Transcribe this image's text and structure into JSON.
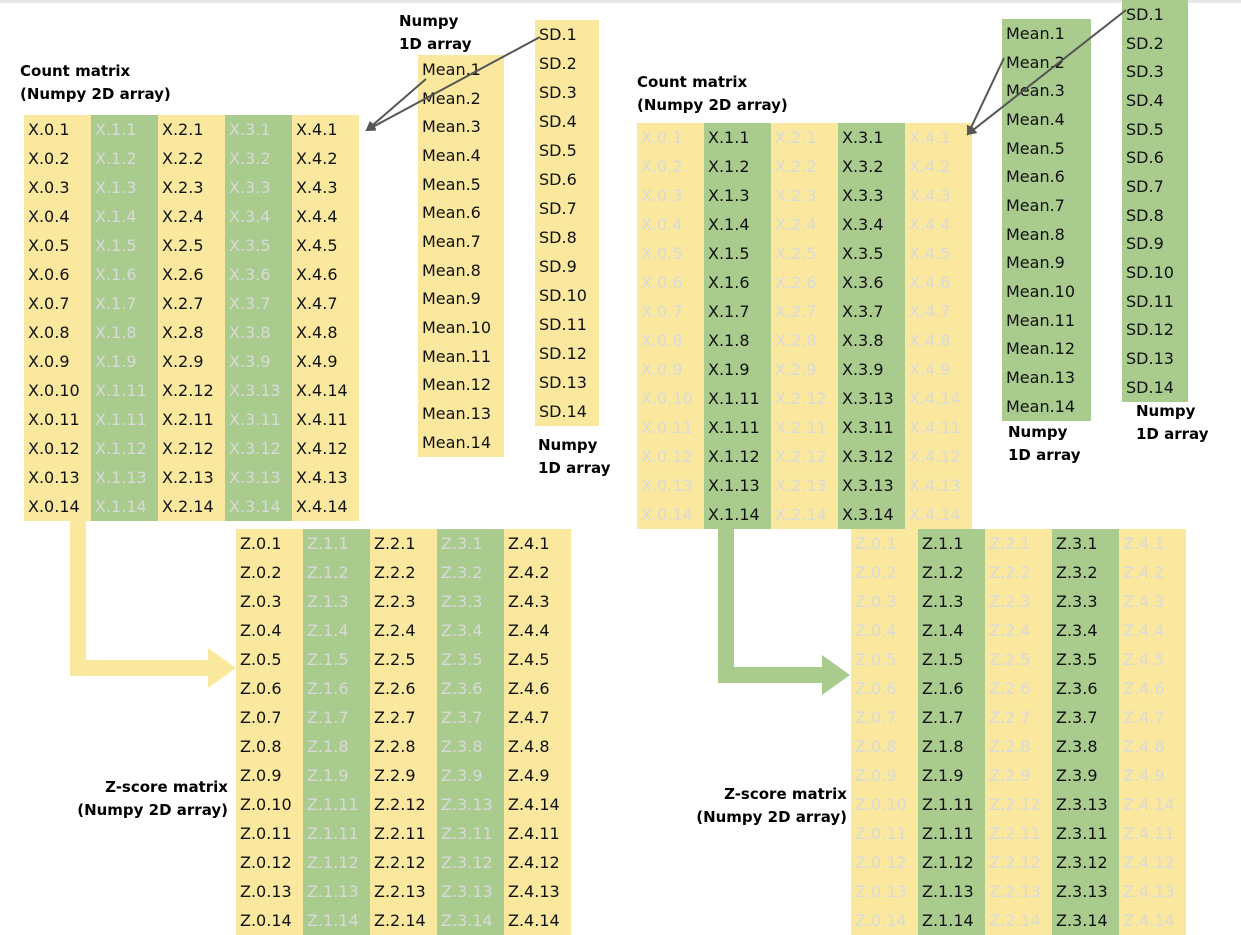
{
  "labels": {
    "count_matrix": "Count matrix\n(Numpy 2D array)",
    "zscore_matrix": "Z-score matrix\n(Numpy 2D array)",
    "numpy_1d": "Numpy\n1D array"
  },
  "colors": {
    "yellow": "#f9e89d",
    "green": "#a9cc8e",
    "text_dark": "#111111",
    "text_faint": "#d9d9d9"
  },
  "means": [
    "Mean.1",
    "Mean.2",
    "Mean.3",
    "Mean.4",
    "Mean.5",
    "Mean.6",
    "Mean.7",
    "Mean.8",
    "Mean.9",
    "Mean.10",
    "Mean.11",
    "Mean.12",
    "Mean.13",
    "Mean.14"
  ],
  "sds": [
    "SD.1",
    "SD.2",
    "SD.3",
    "SD.4",
    "SD.5",
    "SD.6",
    "SD.7",
    "SD.8",
    "SD.9",
    "SD.10",
    "SD.11",
    "SD.12",
    "SD.13",
    "SD.14"
  ],
  "count_matrix": [
    [
      "X.0.1",
      "X.1.1",
      "X.2.1",
      "X.3.1",
      "X.4.1"
    ],
    [
      "X.0.2",
      "X.1.2",
      "X.2.2",
      "X.3.2",
      "X.4.2"
    ],
    [
      "X.0.3",
      "X.1.3",
      "X.2.3",
      "X.3.3",
      "X.4.3"
    ],
    [
      "X.0.4",
      "X.1.4",
      "X.2.4",
      "X.3.4",
      "X.4.4"
    ],
    [
      "X.0.5",
      "X.1.5",
      "X.2.5",
      "X.3.5",
      "X.4.5"
    ],
    [
      "X.0.6",
      "X.1.6",
      "X.2.6",
      "X.3.6",
      "X.4.6"
    ],
    [
      "X.0.7",
      "X.1.7",
      "X.2.7",
      "X.3.7",
      "X.4.7"
    ],
    [
      "X.0.8",
      "X.1.8",
      "X.2.8",
      "X.3.8",
      "X.4.8"
    ],
    [
      "X.0.9",
      "X.1.9",
      "X.2.9",
      "X.3.9",
      "X.4.9"
    ],
    [
      "X.0.10",
      "X.1.11",
      "X.2.12",
      "X.3.13",
      "X.4.14"
    ],
    [
      "X.0.11",
      "X.1.11",
      "X.2.11",
      "X.3.11",
      "X.4.11"
    ],
    [
      "X.0.12",
      "X.1.12",
      "X.2.12",
      "X.3.12",
      "X.4.12"
    ],
    [
      "X.0.13",
      "X.1.13",
      "X.2.13",
      "X.3.13",
      "X.4.13"
    ],
    [
      "X.0.14",
      "X.1.14",
      "X.2.14",
      "X.3.14",
      "X.4.14"
    ]
  ],
  "zscore_matrix": [
    [
      "Z.0.1",
      "Z.1.1",
      "Z.2.1",
      "Z.3.1",
      "Z.4.1"
    ],
    [
      "Z.0.2",
      "Z.1.2",
      "Z.2.2",
      "Z.3.2",
      "Z.4.2"
    ],
    [
      "Z.0.3",
      "Z.1.3",
      "Z.2.3",
      "Z.3.3",
      "Z.4.3"
    ],
    [
      "Z.0.4",
      "Z.1.4",
      "Z.2.4",
      "Z.3.4",
      "Z.4.4"
    ],
    [
      "Z.0.5",
      "Z.1.5",
      "Z.2.5",
      "Z.3.5",
      "Z.4.5"
    ],
    [
      "Z.0.6",
      "Z.1.6",
      "Z.2.6",
      "Z.3.6",
      "Z.4.6"
    ],
    [
      "Z.0.7",
      "Z.1.7",
      "Z.2.7",
      "Z.3.7",
      "Z.4.7"
    ],
    [
      "Z.0.8",
      "Z.1.8",
      "Z.2.8",
      "Z.3.8",
      "Z.4.8"
    ],
    [
      "Z.0.9",
      "Z.1.9",
      "Z.2.9",
      "Z.3.9",
      "Z.4.9"
    ],
    [
      "Z.0.10",
      "Z.1.11",
      "Z.2.12",
      "Z.3.13",
      "Z.4.14"
    ],
    [
      "Z.0.11",
      "Z.1.11",
      "Z.2.11",
      "Z.3.11",
      "Z.4.11"
    ],
    [
      "Z.0.12",
      "Z.1.12",
      "Z.2.12",
      "Z.3.12",
      "Z.4.12"
    ],
    [
      "Z.0.13",
      "Z.1.13",
      "Z.2.13",
      "Z.3.13",
      "Z.4.13"
    ],
    [
      "Z.0.14",
      "Z.1.14",
      "Z.2.14",
      "Z.3.14",
      "Z.4.14"
    ]
  ],
  "left_panel": {
    "bg": [
      "yellow",
      "green",
      "yellow",
      "green",
      "yellow"
    ],
    "text": [
      "dark",
      "faint",
      "dark",
      "faint",
      "dark"
    ],
    "mean_bg": "yellow",
    "sd_bg": "yellow"
  },
  "right_panel": {
    "bg": [
      "yellow",
      "green",
      "yellow",
      "green",
      "yellow"
    ],
    "text": [
      "faint",
      "dark",
      "faint",
      "dark",
      "faint"
    ],
    "mean_bg": "green",
    "sd_bg": "green"
  }
}
